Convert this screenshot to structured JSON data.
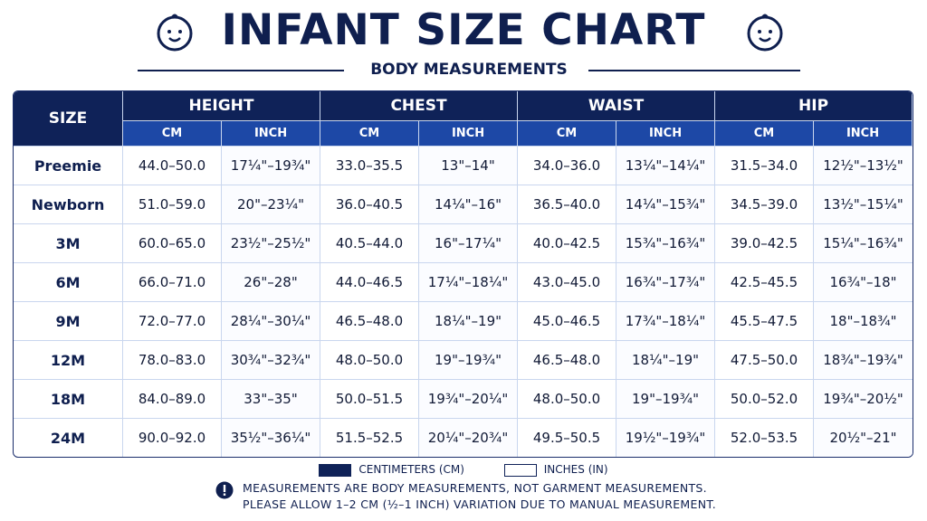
{
  "header": {
    "title": "INFANT SIZE CHART",
    "subtitle": "BODY MEASUREMENTS"
  },
  "table": {
    "size_header": "SIZE",
    "groups": [
      {
        "name": "HEIGHT",
        "columns": [
          "CM",
          "INCH"
        ]
      },
      {
        "name": "CHEST",
        "columns": [
          "CM",
          "INCH"
        ]
      },
      {
        "name": "WAIST",
        "columns": [
          "CM",
          "INCH"
        ]
      },
      {
        "name": "HIP",
        "columns": [
          "CM",
          "INCH"
        ]
      }
    ],
    "rows": [
      [
        "Preemie",
        "44.0–50.0",
        "17¼\"–19¾\"",
        "33.0–35.5",
        "13\"–14\"",
        "34.0–36.0",
        "13¼\"–14¼\"",
        "31.5–34.0",
        "12½\"–13½\""
      ],
      [
        "Newborn",
        "51.0–59.0",
        "20\"–23¼\"",
        "36.0–40.5",
        "14¼\"–16\"",
        "36.5–40.0",
        "14¼\"–15¾\"",
        "34.5–39.0",
        "13½\"–15¼\""
      ],
      [
        "3M",
        "60.0–65.0",
        "23½\"–25½\"",
        "40.5–44.0",
        "16\"–17¼\"",
        "40.0–42.5",
        "15¾\"–16¾\"",
        "39.0–42.5",
        "15¼\"–16¾\""
      ],
      [
        "6M",
        "66.0–71.0",
        "26\"–28\"",
        "44.0–46.5",
        "17¼\"–18¼\"",
        "43.0–45.0",
        "16¾\"–17¾\"",
        "42.5–45.5",
        "16¾\"–18\""
      ],
      [
        "9M",
        "72.0–77.0",
        "28¼\"–30¼\"",
        "46.5–48.0",
        "18¼\"–19\"",
        "45.0–46.5",
        "17¾\"–18¼\"",
        "45.5–47.5",
        "18\"–18¾\""
      ],
      [
        "12M",
        "78.0–83.0",
        "30¾\"–32¾\"",
        "48.0–50.0",
        "19\"–19¾\"",
        "46.5–48.0",
        "18¼\"–19\"",
        "47.5–50.0",
        "18¾\"–19¾\""
      ],
      [
        "18M",
        "84.0–89.0",
        "33\"–35\"",
        "50.0–51.5",
        "19¾\"–20¼\"",
        "48.0–50.0",
        "19\"–19¾\"",
        "50.0–52.0",
        "19¾\"–20½\""
      ],
      [
        "24M",
        "90.0–92.0",
        "35½\"–36¼\"",
        "51.5–52.5",
        "20¼\"–20¾\"",
        "49.5–50.5",
        "19½\"–19¾\"",
        "52.0–53.5",
        "20½\"–21\""
      ]
    ]
  },
  "legend": [
    "CENTIMETERS (CM)",
    "INCHES (IN)"
  ],
  "notes": [
    "MEASUREMENTS ARE BODY MEASUREMENTS, NOT GARMENT MEASUREMENTS.",
    "PLEASE ALLOW 1–2 CM (½–1 INCH) VARIATION DUE TO MANUAL MEASUREMENT."
  ]
}
